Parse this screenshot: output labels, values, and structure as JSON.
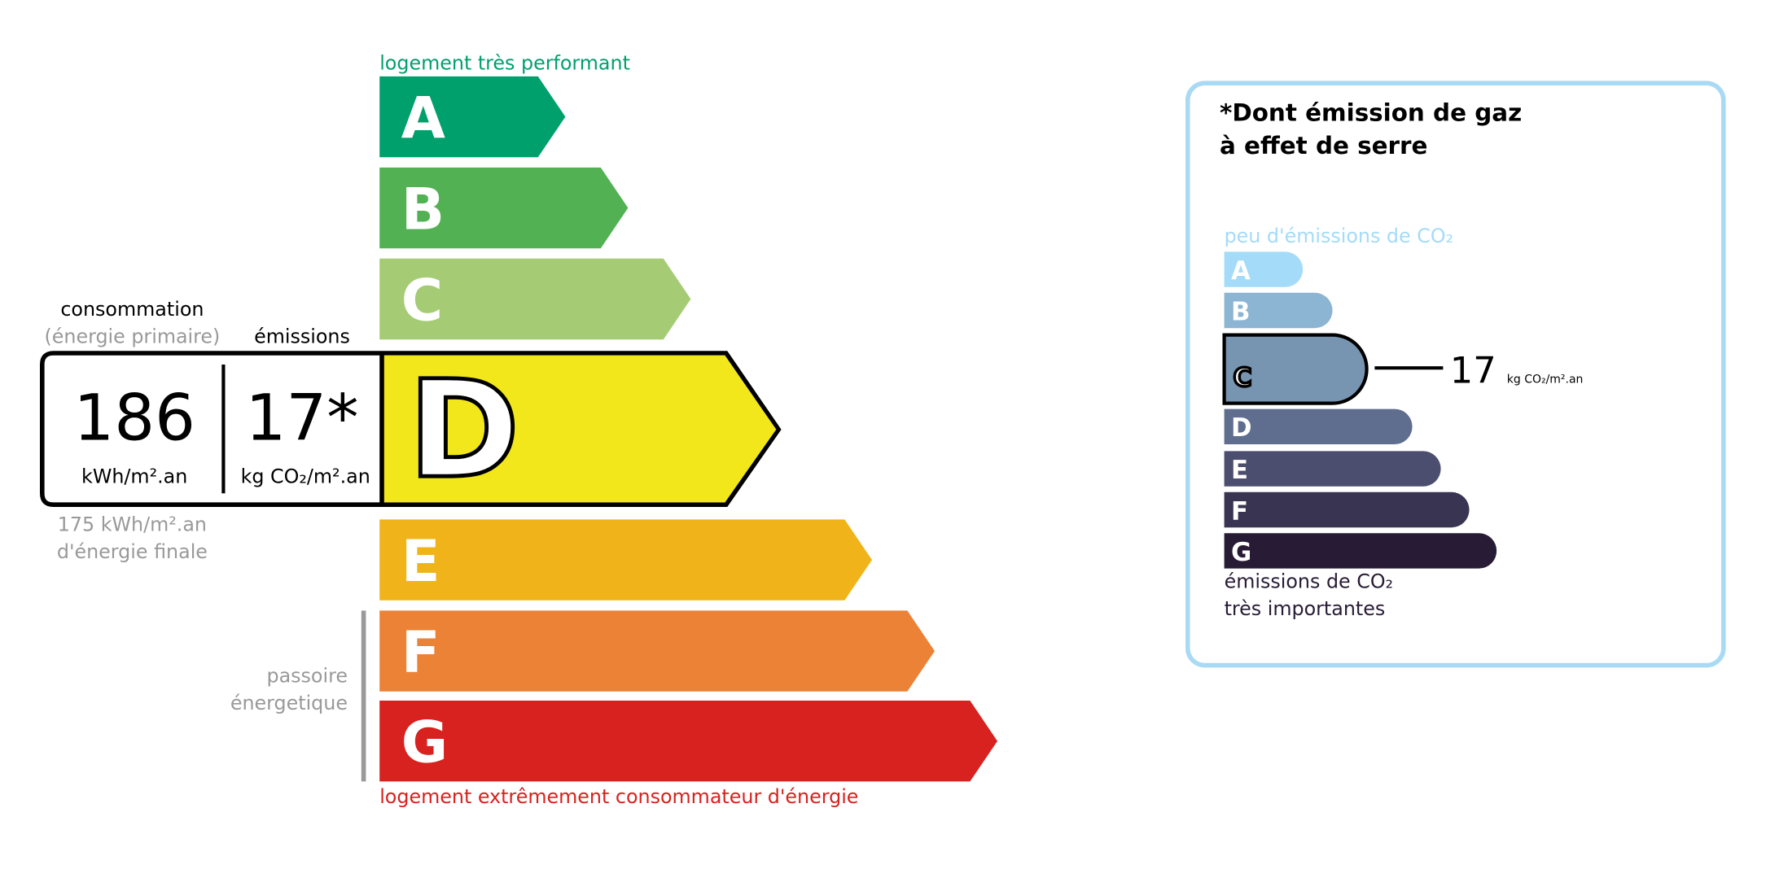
{
  "energy": {
    "top_label": "logement très performant",
    "bottom_label": "logement extrêmement consommateur d'énergie",
    "passoire_label": [
      "passoire",
      "énergetique"
    ],
    "consumption_header": "consommation",
    "consumption_subheader": "(énergie primaire)",
    "emissions_header": "émissions",
    "consumption_value": "186",
    "consumption_unit": "kWh/m².an",
    "emissions_value": "17*",
    "emissions_unit": "kg CO₂/m².an",
    "final_energy_value": "175 kWh/m².an",
    "final_energy_label": "d'énergie finale",
    "current_class": "D",
    "classes": [
      {
        "letter": "A",
        "color": "#00a06d"
      },
      {
        "letter": "B",
        "color": "#52b153"
      },
      {
        "letter": "C",
        "color": "#a5cc74"
      },
      {
        "letter": "D",
        "color": "#f2e71a"
      },
      {
        "letter": "E",
        "color": "#f0b41a"
      },
      {
        "letter": "F",
        "color": "#eb8235"
      },
      {
        "letter": "G",
        "color": "#d7221f"
      }
    ],
    "top_label_color": "#00a06d",
    "bottom_label_color": "#d7221f"
  },
  "ges": {
    "title": [
      "*Dont émission de gaz",
      "à effet de serre"
    ],
    "top_label": "peu d'émissions de CO₂",
    "bottom_label": [
      "émissions de CO₂",
      "très importantes"
    ],
    "current_class": "C",
    "value": "17",
    "unit": "kg CO₂/m².an",
    "border_color": "#a8daf5",
    "classes": [
      {
        "letter": "A",
        "color": "#a4dbf8"
      },
      {
        "letter": "B",
        "color": "#8cb4d3"
      },
      {
        "letter": "C",
        "color": "#7794b1"
      },
      {
        "letter": "D",
        "color": "#5f6d8f"
      },
      {
        "letter": "E",
        "color": "#4b4e6e"
      },
      {
        "letter": "F",
        "color": "#383451"
      },
      {
        "letter": "G",
        "color": "#281b35"
      }
    ]
  }
}
